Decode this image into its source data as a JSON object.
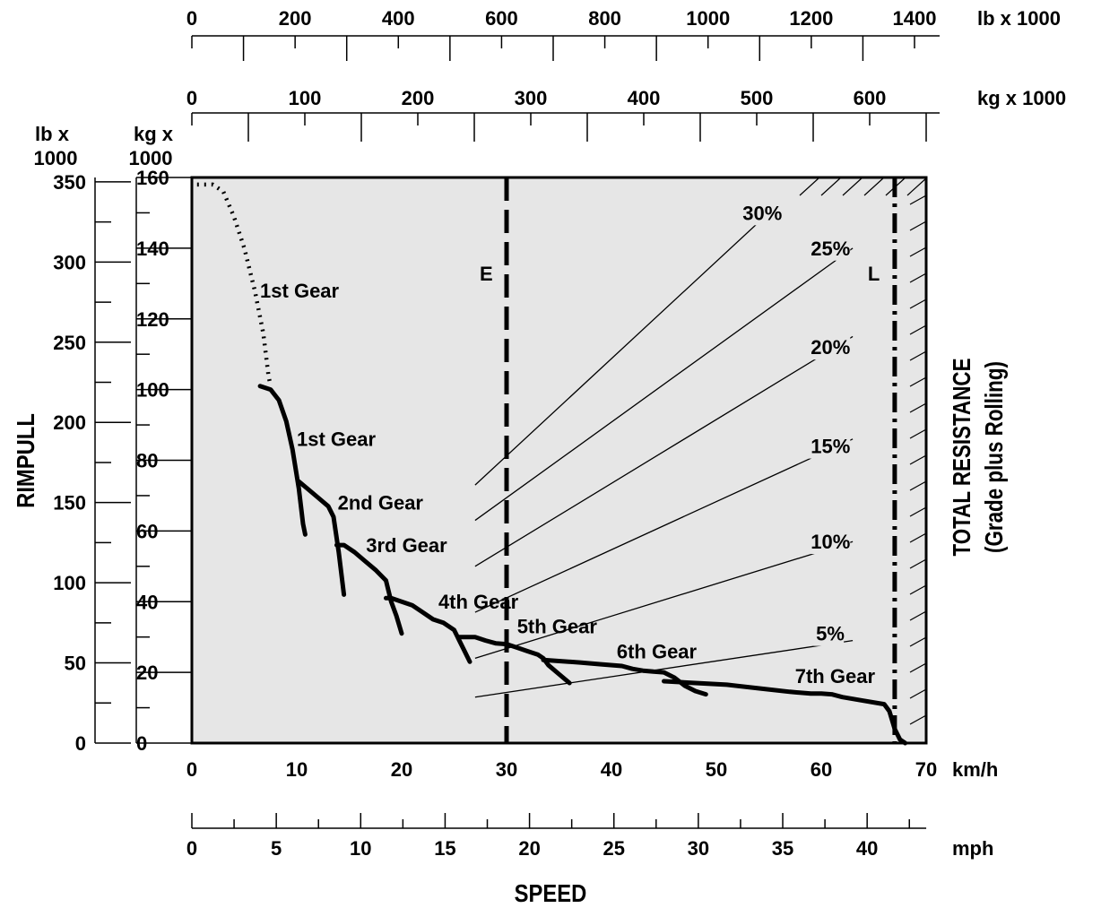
{
  "chart_data": {
    "type": "line",
    "title": "",
    "xlabel": "SPEED",
    "ylabel": "RIMPULL",
    "y2label_line1": "TOTAL RESISTANCE",
    "y2label_line2": "(Grade plus Rolling)",
    "x_unit_kmh": "km/h",
    "x_unit_mph": "mph",
    "top_unit_lb": "lb x 1000",
    "top_unit_kg": "kg x 1000",
    "left_unit_lb_1": "lb x",
    "left_unit_lb_2": "1000",
    "left_unit_kg_1": "kg x",
    "left_unit_kg_2": "1000",
    "xlim_kmh": [
      0,
      70
    ],
    "ylim_kg": [
      0,
      160
    ],
    "grid": false,
    "x_ticks_kmh": [
      0,
      10,
      20,
      30,
      40,
      50,
      60,
      70
    ],
    "x_ticks_mph": [
      0,
      5,
      10,
      15,
      20,
      25,
      30,
      35,
      40
    ],
    "y_ticks_kg": [
      0,
      20,
      40,
      60,
      80,
      100,
      120,
      140,
      160
    ],
    "y_ticks_lb": [
      0,
      50,
      100,
      150,
      200,
      250,
      300,
      350
    ],
    "top_ticks_lb": [
      0,
      200,
      400,
      600,
      800,
      1000,
      1200,
      1400
    ],
    "top_ticks_kg": [
      0,
      100,
      200,
      300,
      400,
      500,
      600
    ],
    "reference_lines": [
      {
        "label": "E",
        "x": 30,
        "style": "dashed"
      },
      {
        "label": "L",
        "x": 67,
        "style": "dash-dot"
      }
    ],
    "series": [
      {
        "name": "1st Gear",
        "style": "dotted",
        "label_at": [
          6.5,
          126
        ],
        "points": [
          [
            0.5,
            158
          ],
          [
            2,
            158
          ],
          [
            3,
            156
          ],
          [
            4,
            149
          ],
          [
            5,
            140
          ],
          [
            6,
            128
          ],
          [
            6.8,
            116
          ],
          [
            7.3,
            104
          ],
          [
            7.5,
            101
          ]
        ]
      },
      {
        "name": "1st Gear",
        "style": "solid",
        "label_at": [
          10,
          84
        ],
        "points": [
          [
            6.5,
            101
          ],
          [
            7.5,
            100
          ],
          [
            8.3,
            97
          ],
          [
            9,
            91
          ],
          [
            9.6,
            83
          ],
          [
            10.2,
            72
          ],
          [
            10.6,
            62
          ],
          [
            10.8,
            59
          ]
        ]
      },
      {
        "name": "2nd Gear",
        "style": "solid",
        "label_at": [
          13.9,
          66
        ],
        "points": [
          [
            10.2,
            74
          ],
          [
            11,
            72
          ],
          [
            12,
            69.5
          ],
          [
            13,
            67
          ],
          [
            13.5,
            64
          ],
          [
            14,
            54
          ],
          [
            14.5,
            42
          ]
        ]
      },
      {
        "name": "3rd Gear",
        "style": "solid",
        "label_at": [
          16.6,
          54
        ],
        "points": [
          [
            13.8,
            56
          ],
          [
            14.5,
            56
          ],
          [
            15.5,
            54
          ],
          [
            16.5,
            51.5
          ],
          [
            17.5,
            49
          ],
          [
            18.5,
            46
          ],
          [
            19,
            40
          ],
          [
            19.5,
            36
          ],
          [
            20,
            31
          ]
        ]
      },
      {
        "name": "4th Gear",
        "style": "solid",
        "label_at": [
          23.5,
          38
        ],
        "points": [
          [
            18.5,
            41
          ],
          [
            19,
            41
          ],
          [
            20,
            40
          ],
          [
            21,
            39
          ],
          [
            22,
            37
          ],
          [
            23,
            35
          ],
          [
            24,
            34
          ],
          [
            25,
            32
          ],
          [
            25.5,
            29
          ],
          [
            26,
            26
          ],
          [
            26.5,
            23
          ]
        ]
      },
      {
        "name": "5th Gear",
        "style": "solid",
        "label_at": [
          31,
          31
        ],
        "points": [
          [
            25.5,
            30
          ],
          [
            27,
            30
          ],
          [
            28,
            29
          ],
          [
            29,
            28.2
          ],
          [
            30,
            28
          ],
          [
            31,
            27
          ],
          [
            32,
            26
          ],
          [
            33,
            25
          ],
          [
            33.5,
            24
          ],
          [
            34,
            22
          ],
          [
            35,
            19.5
          ],
          [
            36,
            17
          ]
        ]
      },
      {
        "name": "6th Gear",
        "style": "solid",
        "label_at": [
          40.5,
          24
        ],
        "points": [
          [
            33.5,
            23.5
          ],
          [
            35,
            23.2
          ],
          [
            37,
            22.8
          ],
          [
            39,
            22.3
          ],
          [
            41,
            21.8
          ],
          [
            42,
            21
          ],
          [
            43,
            20.5
          ],
          [
            44,
            20.2
          ],
          [
            45,
            20
          ],
          [
            46,
            18.5
          ],
          [
            47,
            16.2
          ],
          [
            48,
            14.7
          ],
          [
            49,
            13.8
          ]
        ]
      },
      {
        "name": "7th Gear",
        "style": "solid",
        "label_at": [
          57.5,
          17
        ],
        "points": [
          [
            45,
            17.5
          ],
          [
            48,
            17
          ],
          [
            51,
            16.5
          ],
          [
            54,
            15.5
          ],
          [
            57,
            14.5
          ],
          [
            59,
            14
          ],
          [
            60,
            14
          ],
          [
            61,
            13.8
          ],
          [
            62,
            13
          ],
          [
            64,
            12
          ],
          [
            66,
            11
          ],
          [
            66.5,
            9
          ],
          [
            67,
            4
          ],
          [
            67.5,
            1
          ],
          [
            68,
            0
          ]
        ]
      }
    ],
    "grade_lines": [
      {
        "label": "30%",
        "label_at": [
          52.5,
          148
        ],
        "points": [
          [
            27,
            73
          ],
          [
            55,
            150
          ]
        ]
      },
      {
        "label": "25%",
        "label_at": [
          59,
          138
        ],
        "points": [
          [
            27,
            63
          ],
          [
            63,
            140
          ]
        ]
      },
      {
        "label": "20%",
        "label_at": [
          59,
          110
        ],
        "points": [
          [
            27,
            50
          ],
          [
            63,
            115
          ]
        ]
      },
      {
        "label": "15%",
        "label_at": [
          59,
          82
        ],
        "points": [
          [
            27,
            37
          ],
          [
            63,
            86
          ]
        ]
      },
      {
        "label": "10%",
        "label_at": [
          59,
          55
        ],
        "points": [
          [
            27,
            24
          ],
          [
            63,
            57
          ]
        ]
      },
      {
        "label": "5%",
        "label_at": [
          59.5,
          29
        ],
        "points": [
          [
            27,
            13
          ],
          [
            63,
            29
          ]
        ]
      }
    ]
  }
}
